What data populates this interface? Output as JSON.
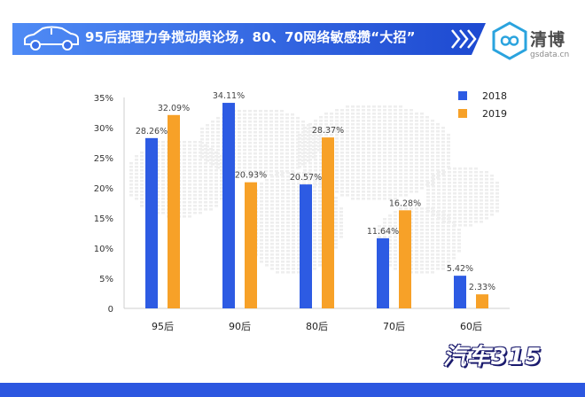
{
  "banner": {
    "title": "95后据理力争搅动舆论场，80、70网络敏感攒“大招”",
    "colors": {
      "gradient_start": "#4f8bf5",
      "gradient_end": "#1d49d1"
    },
    "icon": "car-icon"
  },
  "brand": {
    "name": "清博",
    "site": "gsdata.cn",
    "icon": "infinity-logo-icon",
    "color": "#2aa3de"
  },
  "footer": {
    "logo_text": "汽车315",
    "bar_color": "#2c57e0"
  },
  "chart_data": {
    "type": "bar",
    "categories": [
      "95后",
      "90后",
      "80后",
      "70后",
      "60后"
    ],
    "series": [
      {
        "name": "2018",
        "color": "#2d5be3",
        "values": [
          28.26,
          34.11,
          20.57,
          11.64,
          5.42
        ],
        "labels": [
          "28.26%",
          "34.11%",
          "20.57%",
          "11.64%",
          "5.42%"
        ]
      },
      {
        "name": "2019",
        "color": "#f7a128",
        "values": [
          32.09,
          20.93,
          28.37,
          16.28,
          2.33
        ],
        "labels": [
          "32.09%",
          "20.93%",
          "28.37%",
          "16.28%",
          "2.33%"
        ]
      }
    ],
    "ylim": [
      0,
      35
    ],
    "yticks": [
      0,
      5,
      10,
      15,
      20,
      25,
      30,
      35
    ],
    "ytick_labels": [
      "0",
      "5%",
      "10%",
      "15%",
      "20%",
      "25%",
      "30%",
      "35%"
    ],
    "legend": "top-right",
    "grid": false,
    "xlabel": "",
    "ylabel": ""
  }
}
